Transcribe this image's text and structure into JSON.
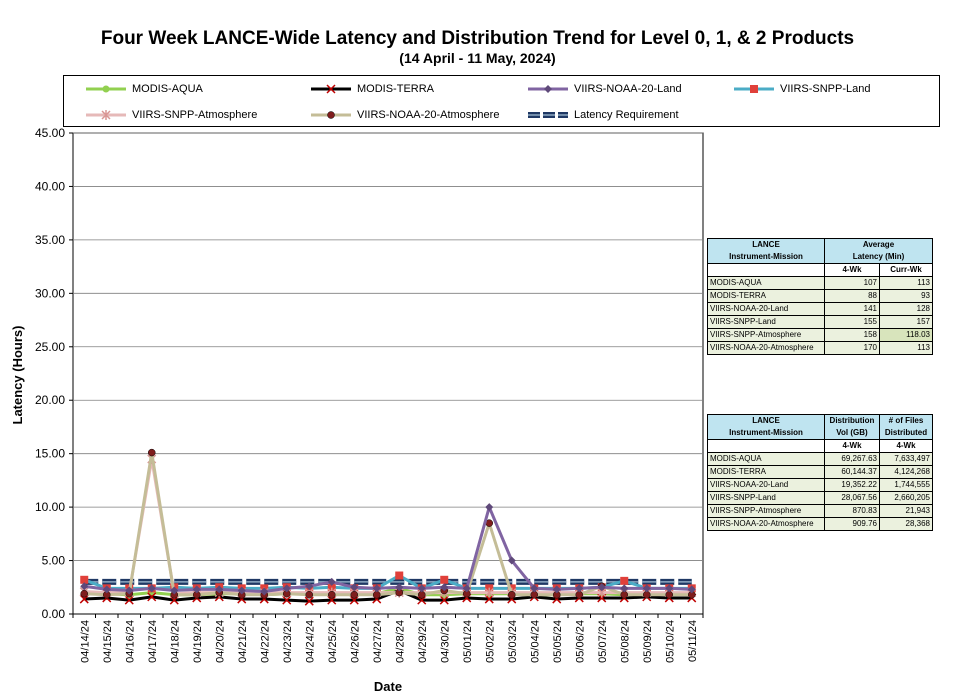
{
  "chart_data": {
    "type": "line",
    "title": "Four Week LANCE-Wide Latency and Distribution Trend for Level 0, 1, & 2 Products",
    "subtitle": "(14  April   - 11  May,  2024)",
    "xlabel": "Date",
    "ylabel": "Latency (Hours)",
    "ylim": [
      0,
      45
    ],
    "yticks": [
      "0.00",
      "5.00",
      "10.00",
      "15.00",
      "20.00",
      "25.00",
      "30.00",
      "35.00",
      "40.00",
      "45.00"
    ],
    "grid": true,
    "legend_position": "top",
    "categories": [
      "04/14/24",
      "04/15/24",
      "04/16/24",
      "04/17/24",
      "04/18/24",
      "04/19/24",
      "04/20/24",
      "04/21/24",
      "04/22/24",
      "04/23/24",
      "04/24/24",
      "04/25/24",
      "04/26/24",
      "04/27/24",
      "04/28/24",
      "04/29/24",
      "04/30/24",
      "05/01/24",
      "05/02/24",
      "05/03/24",
      "05/04/24",
      "05/05/24",
      "05/06/24",
      "05/07/24",
      "05/08/24",
      "05/09/24",
      "05/10/24",
      "05/11/24"
    ],
    "series": [
      {
        "name": "MODIS-AQUA",
        "color": "#92d050",
        "marker": "circle",
        "values": [
          1.9,
          1.9,
          1.8,
          2.0,
          1.8,
          1.8,
          1.9,
          1.9,
          1.8,
          1.9,
          1.9,
          1.9,
          1.8,
          1.9,
          2.4,
          1.8,
          1.8,
          1.9,
          1.9,
          1.9,
          1.8,
          1.8,
          1.9,
          1.9,
          1.8,
          1.9,
          1.9,
          1.9
        ]
      },
      {
        "name": "MODIS-TERRA",
        "color": "#000000",
        "marker": "x",
        "values": [
          1.4,
          1.5,
          1.3,
          1.6,
          1.3,
          1.5,
          1.6,
          1.4,
          1.4,
          1.3,
          1.2,
          1.3,
          1.3,
          1.4,
          2.2,
          1.3,
          1.3,
          1.5,
          1.4,
          1.4,
          1.6,
          1.4,
          1.5,
          1.5,
          1.5,
          1.6,
          1.5,
          1.5
        ]
      },
      {
        "name": "VIIRS-NOAA-20-Land",
        "color": "#8064a2",
        "marker": "diamond",
        "values": [
          2.6,
          2.3,
          2.2,
          2.4,
          2.2,
          2.3,
          2.3,
          2.2,
          2.1,
          2.4,
          2.6,
          3.0,
          2.5,
          2.4,
          2.5,
          2.4,
          2.5,
          2.4,
          10.0,
          5.0,
          2.4,
          2.3,
          2.4,
          2.5,
          2.4,
          2.4,
          2.4,
          2.3
        ]
      },
      {
        "name": "VIIRS-SNPP-Land",
        "color": "#4bacc6",
        "marker": "square",
        "values": [
          3.2,
          2.4,
          2.4,
          2.4,
          2.5,
          2.4,
          2.5,
          2.4,
          2.4,
          2.5,
          2.4,
          2.5,
          2.4,
          2.4,
          3.6,
          2.4,
          3.2,
          2.4,
          2.4,
          2.4,
          2.4,
          2.4,
          2.4,
          2.5,
          3.1,
          2.4,
          2.4,
          2.4
        ]
      },
      {
        "name": "VIIRS-SNPP-Atmosphere",
        "color": "#e6b9b8",
        "marker": "star",
        "values": [
          2.1,
          2.0,
          2.0,
          14.5,
          1.9,
          2.0,
          2.0,
          2.0,
          2.0,
          2.0,
          2.0,
          2.0,
          2.0,
          2.0,
          2.0,
          2.0,
          2.0,
          2.0,
          2.0,
          2.0,
          2.0,
          2.0,
          2.0,
          2.0,
          2.0,
          2.0,
          2.0,
          2.0
        ]
      },
      {
        "name": "VIIRS-NOAA-20-Atmosphere",
        "color": "#c4bd97",
        "marker": "dot",
        "values": [
          1.9,
          1.8,
          1.9,
          15.1,
          1.8,
          1.8,
          2.0,
          1.8,
          1.8,
          1.9,
          1.8,
          1.8,
          1.8,
          1.8,
          2.0,
          1.8,
          2.2,
          1.9,
          8.5,
          1.8,
          1.8,
          1.8,
          1.8,
          2.6,
          1.8,
          1.8,
          1.8,
          1.8
        ]
      },
      {
        "name": "Latency Requirement",
        "color": "#1f3864",
        "marker": "dash",
        "values": [
          3,
          3,
          3,
          3,
          3,
          3,
          3,
          3,
          3,
          3,
          3,
          3,
          3,
          3,
          3,
          3,
          3,
          3,
          3,
          3,
          3,
          3,
          3,
          3,
          3,
          3,
          3,
          3
        ]
      }
    ]
  },
  "latency_table": {
    "header1": "LANCE",
    "header2": "Instrument-Mission",
    "header3": "Average",
    "header4": "Latency (Min)",
    "col1": "4-Wk",
    "col2": "Curr-Wk",
    "rows": [
      {
        "name": "MODIS-AQUA",
        "a": "107",
        "b": "113"
      },
      {
        "name": "MODIS-TERRA",
        "a": "88",
        "b": "93"
      },
      {
        "name": "VIIRS-NOAA-20-Land",
        "a": "141",
        "b": "128"
      },
      {
        "name": "VIIRS-SNPP-Land",
        "a": "155",
        "b": "157"
      },
      {
        "name": "VIIRS-SNPP-Atmosphere",
        "a": "158",
        "b": "118.03"
      },
      {
        "name": "VIIRS-NOAA-20-Atmosphere",
        "a": "170",
        "b": "113"
      }
    ]
  },
  "distribution_table": {
    "header1": "LANCE",
    "header2": "Instrument-Mission",
    "header3": "Distribution",
    "header4": "Vol (GB)",
    "header5": "# of Files",
    "header6": "Distributed",
    "col1": "4-Wk",
    "col2": "4-Wk",
    "rows": [
      {
        "name": "MODIS-AQUA",
        "a": "69,267.63",
        "b": "7,633,497"
      },
      {
        "name": "MODIS-TERRA",
        "a": "60,144.37",
        "b": "4,124,268"
      },
      {
        "name": "VIIRS-NOAA-20-Land",
        "a": "19,352.22",
        "b": "1,744,555"
      },
      {
        "name": "VIIRS-SNPP-Land",
        "a": "28,067.56",
        "b": "2,660,205"
      },
      {
        "name": "VIIRS-SNPP-Atmosphere",
        "a": "870.83",
        "b": "21,943"
      },
      {
        "name": "VIIRS-NOAA-20-Atmosphere",
        "a": "909.76",
        "b": "28,368"
      }
    ]
  }
}
